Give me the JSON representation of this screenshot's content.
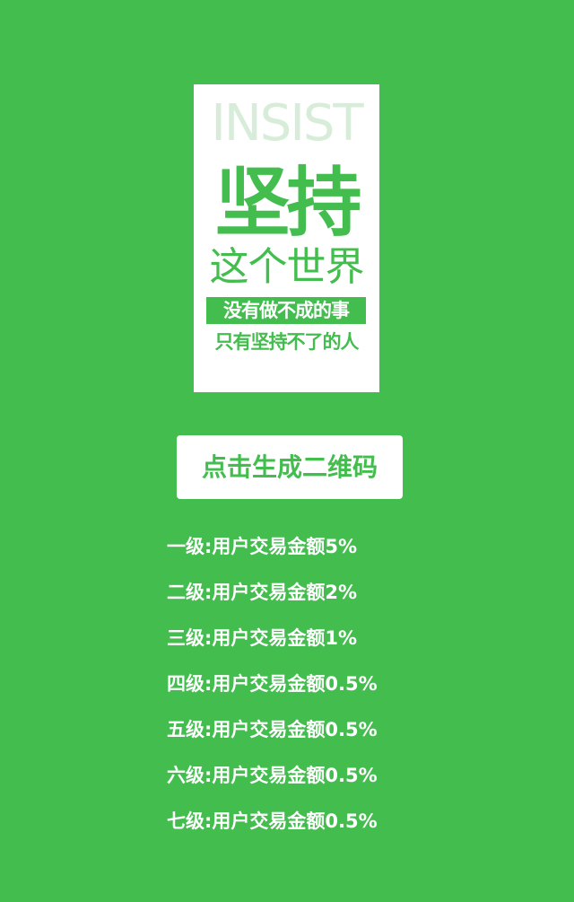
{
  "poster": {
    "english_word": "INSIST",
    "main_text": "坚持",
    "line2": "这个世界",
    "band_text": "没有做不成的事",
    "line4": "只有坚持不了的人"
  },
  "actions": {
    "generate_qr_label": "点击生成二维码"
  },
  "levels": [
    "一级:用户交易金额5%",
    "二级:用户交易金额2%",
    "三级:用户交易金额1%",
    "四级:用户交易金额0.5%",
    "五级:用户交易金额0.5%",
    "六级:用户交易金额0.5%",
    "七级:用户交易金额0.5%"
  ],
  "colors": {
    "background": "#42bd4e",
    "poster_background": "#ffffff",
    "accent": "#42bd4e",
    "english_word": "#d7ecd9"
  }
}
